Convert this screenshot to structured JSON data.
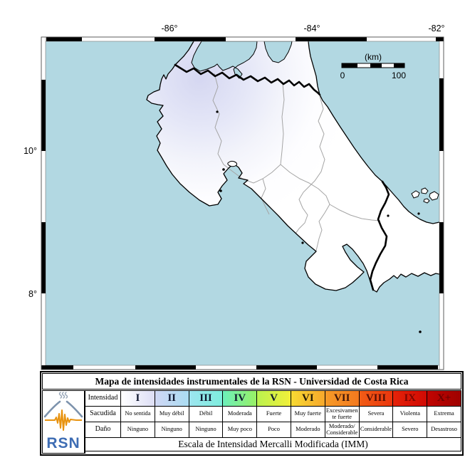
{
  "map": {
    "lon_ticks": [
      "-86°",
      "-84°",
      "-82°"
    ],
    "lat_ticks": [
      "10°",
      "8°"
    ],
    "scale_bar": {
      "unit_label": "(km)",
      "min_label": "0",
      "max_label": "100"
    }
  },
  "legend": {
    "title": "Mapa de intensidades instrumentales de la RSN - Universidad de Costa Rica",
    "footer": "Escala de Intensidad Mercalli Modificada (IMM)",
    "logo_text": "RSN",
    "row_labels": {
      "intensity": "Intensidad",
      "shaking": "Sacudida",
      "damage": "Daño"
    },
    "columns": [
      {
        "numeral": "I",
        "shaking": "No sentida",
        "damage": "Ninguno",
        "color_left": "#ffffff",
        "color_right": "#dddef5",
        "text_color": "#101830"
      },
      {
        "numeral": "II",
        "shaking": "Muy débil",
        "damage": "Ninguno",
        "color_left": "#d0d7f4",
        "color_right": "#aadcf2",
        "text_color": "#101830"
      },
      {
        "numeral": "III",
        "shaking": "Débil",
        "damage": "Ninguno",
        "color_left": "#9de5ef",
        "color_right": "#7eeede",
        "text_color": "#101830"
      },
      {
        "numeral": "IV",
        "shaking": "Moderada",
        "damage": "Muy poco",
        "color_left": "#6cefbb",
        "color_right": "#98f065",
        "text_color": "#101830"
      },
      {
        "numeral": "V",
        "shaking": "Fuerte",
        "damage": "Poco",
        "color_left": "#baf24f",
        "color_right": "#f2f03a",
        "text_color": "#101830"
      },
      {
        "numeral": "VI",
        "shaking": "Muy fuerte",
        "damage": "Moderado",
        "color_left": "#f7da33",
        "color_right": "#f7a82b",
        "text_color": "#241a05"
      },
      {
        "numeral": "VII",
        "shaking": "Excesivamente fuerte",
        "damage": "Moderado/Considerable",
        "color_left": "#f69b28",
        "color_right": "#f4791e",
        "text_color": "#3f1507"
      },
      {
        "numeral": "VIII",
        "shaking": "Severa",
        "damage": "Considerable",
        "color_left": "#f15d16",
        "color_right": "#eb360e",
        "text_color": "#561005"
      },
      {
        "numeral": "IX",
        "shaking": "Violenta",
        "damage": "Severo",
        "color_left": "#e62309",
        "color_right": "#d00a03",
        "text_color": "#7c0702"
      },
      {
        "numeral": "X+",
        "shaking": "Extrema",
        "damage": "Desastroso",
        "color_left": "#c10401",
        "color_right": "#9e0100",
        "text_color": "#6b0200"
      }
    ]
  },
  "colors": {
    "ocean": "#b2d8e2",
    "intensity_tint": "#d5d7f1",
    "logo_blue": "#3d6cb3",
    "seismogram_orange": "#e8930f"
  }
}
